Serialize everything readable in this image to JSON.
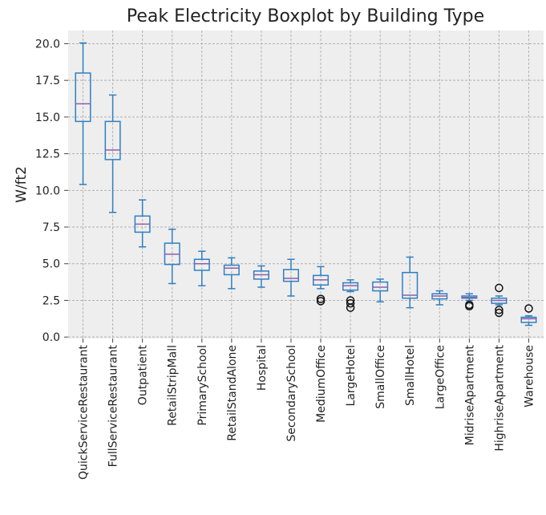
{
  "chart_data": {
    "type": "box",
    "title": "Peak Electricity Boxplot by Building Type",
    "ylabel": "W/ft2",
    "categories": [
      "QuickServiceRestaurant",
      "FullServiceRestaurant",
      "Outpatient",
      "RetailStripMall",
      "PrimarySchool",
      "RetailStandAlone",
      "Hospital",
      "SecondarySchool",
      "MediumOffice",
      "LargeHotel",
      "SmallOffice",
      "SmallHotel",
      "LargeOffice",
      "MidriseApartment",
      "HighriseApartment",
      "Warehouse"
    ],
    "boxes": [
      {
        "whislo": 10.4,
        "q1": 14.7,
        "med": 15.9,
        "q3": 18.0,
        "whishi": 20.05,
        "fliers": []
      },
      {
        "whislo": 8.5,
        "q1": 12.1,
        "med": 12.75,
        "q3": 14.7,
        "whishi": 16.5,
        "fliers": []
      },
      {
        "whislo": 6.15,
        "q1": 7.15,
        "med": 7.7,
        "q3": 8.25,
        "whishi": 9.35,
        "fliers": []
      },
      {
        "whislo": 3.65,
        "q1": 4.95,
        "med": 5.65,
        "q3": 6.4,
        "whishi": 7.35,
        "fliers": []
      },
      {
        "whislo": 3.5,
        "q1": 4.55,
        "med": 5.0,
        "q3": 5.3,
        "whishi": 5.85,
        "fliers": []
      },
      {
        "whislo": 3.3,
        "q1": 4.25,
        "med": 4.7,
        "q3": 4.9,
        "whishi": 5.4,
        "fliers": []
      },
      {
        "whislo": 3.4,
        "q1": 3.95,
        "med": 4.25,
        "q3": 4.5,
        "whishi": 4.85,
        "fliers": []
      },
      {
        "whislo": 2.8,
        "q1": 3.8,
        "med": 4.0,
        "q3": 4.6,
        "whishi": 5.3,
        "fliers": []
      },
      {
        "whislo": 3.3,
        "q1": 3.55,
        "med": 3.9,
        "q3": 4.2,
        "whishi": 4.8,
        "fliers": [
          2.6,
          2.45
        ]
      },
      {
        "whislo": 3.1,
        "q1": 3.2,
        "med": 3.5,
        "q3": 3.7,
        "whishi": 3.9,
        "fliers": [
          2.5,
          2.3,
          2.0
        ]
      },
      {
        "whislo": 2.4,
        "q1": 3.15,
        "med": 3.4,
        "q3": 3.75,
        "whishi": 3.95,
        "fliers": []
      },
      {
        "whislo": 2.0,
        "q1": 2.65,
        "med": 2.85,
        "q3": 4.4,
        "whishi": 5.45,
        "fliers": []
      },
      {
        "whislo": 2.2,
        "q1": 2.6,
        "med": 2.8,
        "q3": 2.95,
        "whishi": 3.15,
        "fliers": []
      },
      {
        "whislo": 2.5,
        "q1": 2.65,
        "med": 2.7,
        "q3": 2.8,
        "whishi": 2.95,
        "fliers": [
          2.2,
          2.1
        ]
      },
      {
        "whislo": 2.2,
        "q1": 2.3,
        "med": 2.5,
        "q3": 2.65,
        "whishi": 2.8,
        "fliers": [
          3.35,
          1.85,
          1.65
        ]
      },
      {
        "whislo": 0.8,
        "q1": 1.0,
        "med": 1.25,
        "q3": 1.35,
        "whishi": 1.45,
        "fliers": [
          1.95
        ]
      }
    ],
    "color": "#2f7fc1",
    "median_color": "#8e5fa8",
    "ylim": [
      -0.1,
      20.9
    ],
    "yticks": [
      {
        "value": 0,
        "label": "0.0"
      },
      2.5,
      {
        "value": 5,
        "label": "5.0"
      },
      7.5,
      {
        "value": 10,
        "label": "10.0"
      },
      12.5,
      {
        "value": 15,
        "label": "15.0"
      },
      17.5,
      {
        "value": 20,
        "label": "20.0"
      }
    ],
    "grid": true
  }
}
